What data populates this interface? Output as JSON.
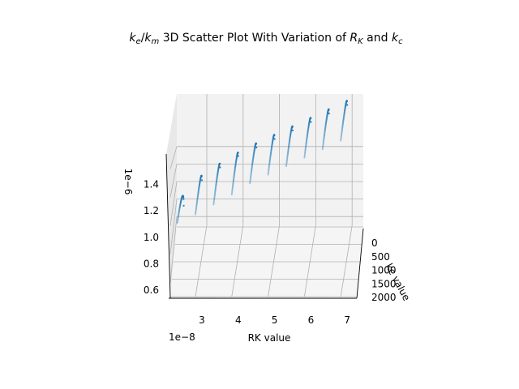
{
  "chart_data": {
    "type": "scatter",
    "title_parts": [
      "k",
      "e",
      "/k",
      "m",
      " 3D Scatter Plot With Variation of R",
      "K",
      " and k",
      "c"
    ],
    "xlabel": "RK value",
    "ylabel": "kc value",
    "x_offset_label": "1e−8",
    "z_offset_label": "1e−6",
    "x_ticks": [
      "3",
      "4",
      "5",
      "6",
      "7"
    ],
    "y_ticks": [
      "0",
      "500",
      "1000",
      "1500",
      "2000"
    ],
    "z_ticks": [
      "0.6",
      "0.8",
      "1.0",
      "1.2",
      "1.4"
    ],
    "grid": true,
    "point_color": "#1f77b4",
    "pane_color": "#f2f2f2",
    "series": [
      {
        "x_rk_1e8": [
          2.5,
          3.0,
          3.5,
          4.0,
          4.5,
          5.0,
          5.5,
          6.0,
          6.5,
          7.0
        ],
        "kc_range": [
          0,
          2000
        ],
        "z_min_1e6": [
          0.65,
          0.83,
          0.92,
          1.0,
          1.06,
          1.12,
          1.18,
          1.24,
          1.3,
          1.36
        ],
        "z_max_1e6": [
          1.02,
          1.08,
          1.15,
          1.22,
          1.3,
          1.36,
          1.42,
          1.48,
          1.54,
          1.6
        ]
      }
    ]
  }
}
